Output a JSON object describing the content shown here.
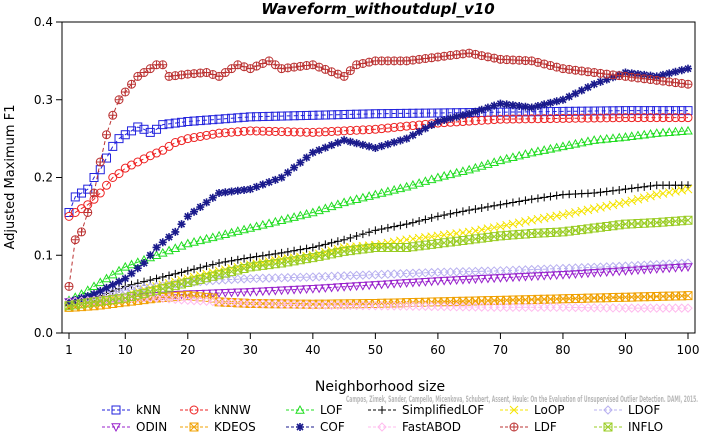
{
  "chart_data": {
    "type": "line",
    "title": "Waveform_withoutdupl_v10",
    "xlabel": "Neighborhood size",
    "ylabel": "Adjusted Maximum F1",
    "xlim": [
      1,
      100
    ],
    "ylim": [
      0,
      0.4
    ],
    "xticks": [
      1,
      10,
      20,
      30,
      40,
      50,
      60,
      70,
      80,
      90,
      100
    ],
    "yticks": [
      0.0,
      0.1,
      0.2,
      0.3,
      0.4
    ],
    "grid": false,
    "legend_position": "bottom",
    "watermark": "Campos, Zimek, Sander, Campello, Micenkova, Schubert, Assent, Houle: On the Evaluation of Unsupervised Outlier Detection. DAMI, 2015.",
    "series": [
      {
        "name": "kNN",
        "color": "#2222dd",
        "marker": "square",
        "points": [
          [
            1,
            0.155
          ],
          [
            2,
            0.175
          ],
          [
            3,
            0.18
          ],
          [
            4,
            0.185
          ],
          [
            5,
            0.2
          ],
          [
            6,
            0.21
          ],
          [
            7,
            0.225
          ],
          [
            8,
            0.24
          ],
          [
            9,
            0.25
          ],
          [
            10,
            0.255
          ],
          [
            11,
            0.26
          ],
          [
            12,
            0.265
          ],
          [
            13,
            0.262
          ],
          [
            14,
            0.258
          ],
          [
            15,
            0.262
          ],
          [
            16,
            0.268
          ],
          [
            18,
            0.27
          ],
          [
            20,
            0.272
          ],
          [
            25,
            0.275
          ],
          [
            30,
            0.278
          ],
          [
            40,
            0.28
          ],
          [
            50,
            0.282
          ],
          [
            60,
            0.283
          ],
          [
            70,
            0.284
          ],
          [
            80,
            0.285
          ],
          [
            90,
            0.286
          ],
          [
            100,
            0.286
          ]
        ]
      },
      {
        "name": "kNNW",
        "color": "#ee2222",
        "marker": "circle",
        "points": [
          [
            1,
            0.15
          ],
          [
            2,
            0.155
          ],
          [
            3,
            0.16
          ],
          [
            4,
            0.165
          ],
          [
            5,
            0.172
          ],
          [
            6,
            0.18
          ],
          [
            7,
            0.19
          ],
          [
            8,
            0.2
          ],
          [
            9,
            0.205
          ],
          [
            10,
            0.212
          ],
          [
            12,
            0.22
          ],
          [
            14,
            0.228
          ],
          [
            16,
            0.235
          ],
          [
            18,
            0.245
          ],
          [
            20,
            0.25
          ],
          [
            25,
            0.257
          ],
          [
            30,
            0.26
          ],
          [
            40,
            0.258
          ],
          [
            50,
            0.262
          ],
          [
            60,
            0.27
          ],
          [
            70,
            0.275
          ],
          [
            80,
            0.276
          ],
          [
            90,
            0.277
          ],
          [
            100,
            0.277
          ]
        ]
      },
      {
        "name": "LOF",
        "color": "#22dd22",
        "marker": "triangle-up",
        "points": [
          [
            1,
            0.042
          ],
          [
            3,
            0.05
          ],
          [
            5,
            0.06
          ],
          [
            8,
            0.075
          ],
          [
            10,
            0.085
          ],
          [
            15,
            0.1
          ],
          [
            20,
            0.115
          ],
          [
            25,
            0.125
          ],
          [
            30,
            0.135
          ],
          [
            35,
            0.145
          ],
          [
            40,
            0.155
          ],
          [
            45,
            0.168
          ],
          [
            50,
            0.178
          ],
          [
            55,
            0.188
          ],
          [
            60,
            0.2
          ],
          [
            65,
            0.21
          ],
          [
            70,
            0.222
          ],
          [
            75,
            0.232
          ],
          [
            80,
            0.24
          ],
          [
            85,
            0.248
          ],
          [
            90,
            0.252
          ],
          [
            95,
            0.257
          ],
          [
            100,
            0.26
          ]
        ]
      },
      {
        "name": "SimplifiedLOF",
        "color": "#000000",
        "marker": "plus",
        "points": [
          [
            1,
            0.035
          ],
          [
            5,
            0.045
          ],
          [
            10,
            0.06
          ],
          [
            15,
            0.07
          ],
          [
            20,
            0.08
          ],
          [
            25,
            0.09
          ],
          [
            30,
            0.097
          ],
          [
            35,
            0.103
          ],
          [
            40,
            0.11
          ],
          [
            45,
            0.12
          ],
          [
            50,
            0.132
          ],
          [
            55,
            0.14
          ],
          [
            60,
            0.15
          ],
          [
            65,
            0.158
          ],
          [
            70,
            0.165
          ],
          [
            75,
            0.172
          ],
          [
            80,
            0.178
          ],
          [
            85,
            0.18
          ],
          [
            90,
            0.185
          ],
          [
            95,
            0.19
          ],
          [
            100,
            0.19
          ]
        ]
      },
      {
        "name": "LoOP",
        "color": "#f5e400",
        "marker": "cross",
        "points": [
          [
            1,
            0.035
          ],
          [
            5,
            0.04
          ],
          [
            10,
            0.05
          ],
          [
            15,
            0.06
          ],
          [
            20,
            0.07
          ],
          [
            25,
            0.08
          ],
          [
            30,
            0.088
          ],
          [
            35,
            0.095
          ],
          [
            40,
            0.1
          ],
          [
            45,
            0.11
          ],
          [
            50,
            0.113
          ],
          [
            55,
            0.12
          ],
          [
            60,
            0.125
          ],
          [
            65,
            0.13
          ],
          [
            70,
            0.137
          ],
          [
            75,
            0.145
          ],
          [
            80,
            0.152
          ],
          [
            85,
            0.16
          ],
          [
            90,
            0.168
          ],
          [
            95,
            0.178
          ],
          [
            100,
            0.185
          ]
        ]
      },
      {
        "name": "LDOF",
        "color": "#b8b0f0",
        "marker": "diamond",
        "points": [
          [
            1,
            0.04
          ],
          [
            5,
            0.048
          ],
          [
            10,
            0.055
          ],
          [
            15,
            0.06
          ],
          [
            20,
            0.065
          ],
          [
            25,
            0.068
          ],
          [
            30,
            0.07
          ],
          [
            40,
            0.072
          ],
          [
            50,
            0.075
          ],
          [
            60,
            0.078
          ],
          [
            70,
            0.08
          ],
          [
            80,
            0.083
          ],
          [
            90,
            0.086
          ],
          [
            100,
            0.09
          ]
        ]
      },
      {
        "name": "ODIN",
        "color": "#9922cc",
        "marker": "triangle-down",
        "points": [
          [
            1,
            0.04
          ],
          [
            5,
            0.042
          ],
          [
            10,
            0.045
          ],
          [
            15,
            0.048
          ],
          [
            20,
            0.05
          ],
          [
            30,
            0.053
          ],
          [
            40,
            0.057
          ],
          [
            50,
            0.062
          ],
          [
            60,
            0.067
          ],
          [
            70,
            0.071
          ],
          [
            80,
            0.075
          ],
          [
            90,
            0.08
          ],
          [
            100,
            0.085
          ]
        ]
      },
      {
        "name": "KDEOS",
        "color": "#f0a000",
        "marker": "square-x",
        "points": [
          [
            1,
            0.033
          ],
          [
            5,
            0.035
          ],
          [
            10,
            0.04
          ],
          [
            15,
            0.045
          ],
          [
            20,
            0.048
          ],
          [
            24,
            0.045
          ],
          [
            25,
            0.04
          ],
          [
            30,
            0.038
          ],
          [
            40,
            0.037
          ],
          [
            50,
            0.038
          ],
          [
            60,
            0.04
          ],
          [
            70,
            0.042
          ],
          [
            80,
            0.044
          ],
          [
            90,
            0.046
          ],
          [
            100,
            0.048
          ]
        ]
      },
      {
        "name": "COF",
        "color": "#1a1a8c",
        "marker": "asterisk",
        "points": [
          [
            1,
            0.04
          ],
          [
            5,
            0.05
          ],
          [
            10,
            0.07
          ],
          [
            13,
            0.09
          ],
          [
            15,
            0.11
          ],
          [
            18,
            0.13
          ],
          [
            20,
            0.15
          ],
          [
            25,
            0.18
          ],
          [
            30,
            0.185
          ],
          [
            35,
            0.2
          ],
          [
            40,
            0.232
          ],
          [
            45,
            0.248
          ],
          [
            50,
            0.238
          ],
          [
            55,
            0.25
          ],
          [
            60,
            0.272
          ],
          [
            65,
            0.282
          ],
          [
            70,
            0.295
          ],
          [
            75,
            0.29
          ],
          [
            80,
            0.3
          ],
          [
            85,
            0.32
          ],
          [
            90,
            0.335
          ],
          [
            95,
            0.33
          ],
          [
            100,
            0.34
          ]
        ]
      },
      {
        "name": "FastABOD",
        "color": "#ffbbee",
        "marker": "diamond",
        "points": [
          [
            1,
            0.04
          ],
          [
            5,
            0.042
          ],
          [
            10,
            0.045
          ],
          [
            15,
            0.045
          ],
          [
            20,
            0.042
          ],
          [
            25,
            0.04
          ],
          [
            30,
            0.038
          ],
          [
            40,
            0.036
          ],
          [
            50,
            0.035
          ],
          [
            60,
            0.034
          ],
          [
            70,
            0.033
          ],
          [
            80,
            0.033
          ],
          [
            90,
            0.032
          ],
          [
            100,
            0.032
          ]
        ]
      },
      {
        "name": "LDF",
        "color": "#bb3333",
        "marker": "circle-plus",
        "points": [
          [
            1,
            0.06
          ],
          [
            2,
            0.12
          ],
          [
            3,
            0.13
          ],
          [
            4,
            0.155
          ],
          [
            5,
            0.18
          ],
          [
            6,
            0.22
          ],
          [
            7,
            0.255
          ],
          [
            8,
            0.28
          ],
          [
            9,
            0.3
          ],
          [
            10,
            0.31
          ],
          [
            11,
            0.32
          ],
          [
            12,
            0.33
          ],
          [
            13,
            0.335
          ],
          [
            14,
            0.34
          ],
          [
            15,
            0.345
          ],
          [
            16,
            0.345
          ],
          [
            17,
            0.33
          ],
          [
            20,
            0.333
          ],
          [
            23,
            0.335
          ],
          [
            25,
            0.33
          ],
          [
            28,
            0.345
          ],
          [
            30,
            0.34
          ],
          [
            33,
            0.35
          ],
          [
            35,
            0.34
          ],
          [
            40,
            0.345
          ],
          [
            45,
            0.33
          ],
          [
            47,
            0.345
          ],
          [
            50,
            0.35
          ],
          [
            55,
            0.35
          ],
          [
            60,
            0.355
          ],
          [
            65,
            0.36
          ],
          [
            70,
            0.352
          ],
          [
            75,
            0.35
          ],
          [
            80,
            0.34
          ],
          [
            85,
            0.335
          ],
          [
            90,
            0.33
          ],
          [
            95,
            0.325
          ],
          [
            100,
            0.32
          ]
        ]
      },
      {
        "name": "INFLO",
        "color": "#99cc22",
        "marker": "square-x",
        "points": [
          [
            1,
            0.035
          ],
          [
            5,
            0.04
          ],
          [
            10,
            0.045
          ],
          [
            15,
            0.055
          ],
          [
            20,
            0.065
          ],
          [
            25,
            0.075
          ],
          [
            30,
            0.085
          ],
          [
            35,
            0.09
          ],
          [
            40,
            0.097
          ],
          [
            45,
            0.105
          ],
          [
            50,
            0.11
          ],
          [
            55,
            0.11
          ],
          [
            60,
            0.115
          ],
          [
            65,
            0.12
          ],
          [
            70,
            0.125
          ],
          [
            75,
            0.128
          ],
          [
            80,
            0.13
          ],
          [
            85,
            0.135
          ],
          [
            90,
            0.14
          ],
          [
            95,
            0.142
          ],
          [
            100,
            0.145
          ]
        ]
      }
    ],
    "legend_layout": [
      [
        "kNN",
        "kNNW",
        "LOF",
        "SimplifiedLOF",
        "LoOP",
        "LDOF"
      ],
      [
        "ODIN",
        "KDEOS",
        "COF",
        "FastABOD",
        "LDF",
        "INFLO"
      ]
    ]
  }
}
